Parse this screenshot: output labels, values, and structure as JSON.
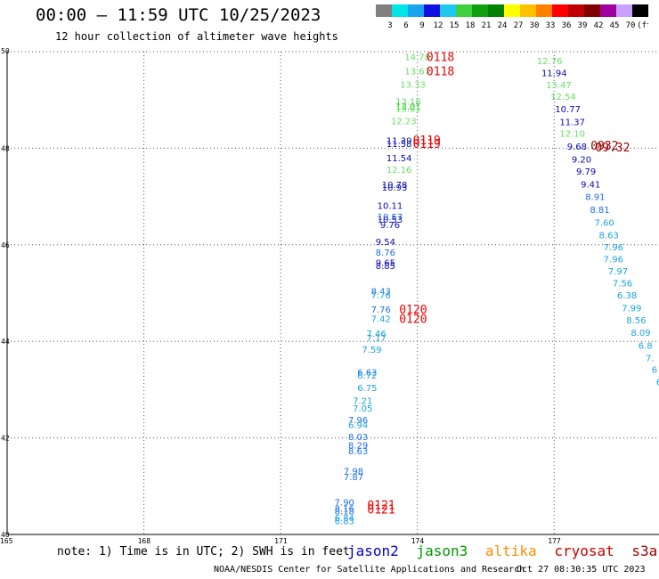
{
  "header": {
    "title": "00:00 – 11:59 UTC 10/25/2023",
    "subtitle": "12 hour collection of altimeter wave heights"
  },
  "colorbar": {
    "labels": [
      "3",
      "6",
      "9",
      "12",
      "15",
      "18",
      "21",
      "24",
      "27",
      "30",
      "33",
      "36",
      "39",
      "42",
      "45",
      "70",
      "(ft)"
    ],
    "colors": [
      "#808080",
      "#00e5e5",
      "#1aa3f0",
      "#1010e0",
      "#1ec8f0",
      "#40d040",
      "#10a010",
      "#008000",
      "#ffff00",
      "#ffc000",
      "#ff8000",
      "#ff0000",
      "#c00000",
      "#800000",
      "#a000a0",
      "#c8a0ff",
      "#000000"
    ]
  },
  "footer": {
    "note": "note: 1) Time is in UTC; 2) SWH is in feet",
    "credit": "NOAA/NESDIS Center for Satellite Applications and Research",
    "timestamp": "Oct 27 08:30:35 UTC 2023"
  },
  "satellites": [
    {
      "name": "jason2",
      "color": "#0000cc"
    },
    {
      "name": "jason3",
      "color": "#009900"
    },
    {
      "name": "altika",
      "color": "#ff8c00"
    },
    {
      "name": "cryosat",
      "color": "#cc0000"
    },
    {
      "name": "s3a",
      "color": "#990000"
    }
  ],
  "chart_data": {
    "type": "scatter",
    "title": "00:00 – 11:59 UTC 10/25/2023",
    "subtitle": "12 hour collection of altimeter wave heights",
    "xlim": [
      165,
      179.3
    ],
    "ylim": [
      40,
      50
    ],
    "x_ticks": [
      "165",
      "168",
      "171",
      "174",
      "177"
    ],
    "y_ticks": [
      "40",
      "42",
      "44",
      "46",
      "48",
      "50"
    ],
    "grid": true,
    "colors": {
      "lime": "#66e066",
      "green": "#22c022",
      "navy": "#0a0ab4",
      "blue": "#1e6ef0",
      "cyan": "#1aa3e0",
      "red": "#ee0000",
      "maroon": "#990000"
    },
    "points": [
      {
        "x": 174.0,
        "y": 49.9,
        "label": "14.78",
        "color": "lime"
      },
      {
        "x": 174.0,
        "y": 49.6,
        "label": "13.67",
        "color": "lime"
      },
      {
        "x": 173.9,
        "y": 49.33,
        "label": "13.33",
        "color": "lime"
      },
      {
        "x": 173.8,
        "y": 48.98,
        "label": "13.18",
        "color": "lime"
      },
      {
        "x": 173.8,
        "y": 48.87,
        "label": "13.01",
        "color": "green"
      },
      {
        "x": 173.8,
        "y": 48.83,
        "label": "15.01",
        "color": "lime"
      },
      {
        "x": 173.7,
        "y": 48.57,
        "label": "12.23",
        "color": "lime"
      },
      {
        "x": 173.6,
        "y": 48.16,
        "label": "11.39",
        "color": "navy"
      },
      {
        "x": 173.6,
        "y": 48.1,
        "label": "11.58",
        "color": "navy"
      },
      {
        "x": 173.6,
        "y": 47.8,
        "label": "11.54",
        "color": "navy"
      },
      {
        "x": 173.6,
        "y": 47.56,
        "label": "12.16",
        "color": "lime"
      },
      {
        "x": 173.5,
        "y": 47.25,
        "label": "10.78",
        "color": "navy"
      },
      {
        "x": 173.5,
        "y": 47.2,
        "label": "10.93",
        "color": "navy"
      },
      {
        "x": 173.4,
        "y": 46.82,
        "label": "10.11",
        "color": "navy"
      },
      {
        "x": 173.4,
        "y": 46.59,
        "label": "10.57",
        "color": "blue"
      },
      {
        "x": 173.4,
        "y": 46.53,
        "label": "10.53",
        "color": "navy"
      },
      {
        "x": 173.4,
        "y": 46.42,
        "label": "9.76",
        "color": "navy"
      },
      {
        "x": 173.3,
        "y": 46.07,
        "label": "9.54",
        "color": "navy"
      },
      {
        "x": 173.3,
        "y": 45.85,
        "label": "8.76",
        "color": "blue"
      },
      {
        "x": 173.3,
        "y": 45.64,
        "label": "9.65",
        "color": "navy"
      },
      {
        "x": 173.3,
        "y": 45.57,
        "label": "8.85",
        "color": "navy"
      },
      {
        "x": 173.2,
        "y": 45.05,
        "label": "8.43",
        "color": "blue"
      },
      {
        "x": 173.2,
        "y": 44.96,
        "label": "7.76",
        "color": "cyan"
      },
      {
        "x": 173.2,
        "y": 44.67,
        "label": "7.76",
        "color": "blue"
      },
      {
        "x": 173.2,
        "y": 44.47,
        "label": "7.42",
        "color": "cyan"
      },
      {
        "x": 173.1,
        "y": 44.17,
        "label": "7.46",
        "color": "cyan"
      },
      {
        "x": 173.1,
        "y": 44.08,
        "label": "7.17",
        "color": "cyan"
      },
      {
        "x": 173.0,
        "y": 43.84,
        "label": "7.59",
        "color": "cyan"
      },
      {
        "x": 172.9,
        "y": 43.37,
        "label": "6.63",
        "color": "blue"
      },
      {
        "x": 172.9,
        "y": 43.3,
        "label": "6.72",
        "color": "cyan"
      },
      {
        "x": 172.9,
        "y": 43.04,
        "label": "6.75",
        "color": "cyan"
      },
      {
        "x": 172.8,
        "y": 42.78,
        "label": "7.21",
        "color": "cyan"
      },
      {
        "x": 172.8,
        "y": 42.62,
        "label": "7.05",
        "color": "cyan"
      },
      {
        "x": 172.7,
        "y": 42.38,
        "label": "7.96",
        "color": "blue"
      },
      {
        "x": 172.7,
        "y": 42.28,
        "label": "6.94",
        "color": "cyan"
      },
      {
        "x": 172.7,
        "y": 42.03,
        "label": "8.03",
        "color": "blue"
      },
      {
        "x": 172.7,
        "y": 41.85,
        "label": "8.29",
        "color": "blue"
      },
      {
        "x": 172.7,
        "y": 41.73,
        "label": "8.63",
        "color": "blue"
      },
      {
        "x": 172.6,
        "y": 41.32,
        "label": "7.98",
        "color": "blue"
      },
      {
        "x": 172.6,
        "y": 41.2,
        "label": "7.87",
        "color": "blue"
      },
      {
        "x": 172.4,
        "y": 40.67,
        "label": "7.90",
        "color": "blue"
      },
      {
        "x": 172.4,
        "y": 40.54,
        "label": "8.16",
        "color": "blue"
      },
      {
        "x": 172.4,
        "y": 40.49,
        "label": "8.18",
        "color": "blue"
      },
      {
        "x": 172.4,
        "y": 40.35,
        "label": "6.84",
        "color": "cyan"
      },
      {
        "x": 172.4,
        "y": 40.29,
        "label": "6.83",
        "color": "cyan"
      },
      {
        "x": 176.9,
        "y": 49.82,
        "label": "12.76",
        "color": "lime"
      },
      {
        "x": 177.0,
        "y": 49.57,
        "label": "11.94",
        "color": "navy"
      },
      {
        "x": 177.1,
        "y": 49.32,
        "label": "13.47",
        "color": "lime"
      },
      {
        "x": 177.2,
        "y": 49.08,
        "label": "12.54",
        "color": "lime"
      },
      {
        "x": 177.3,
        "y": 48.82,
        "label": "10.77",
        "color": "navy"
      },
      {
        "x": 177.4,
        "y": 48.55,
        "label": "11.37",
        "color": "navy"
      },
      {
        "x": 177.4,
        "y": 48.31,
        "label": "12.10",
        "color": "lime"
      },
      {
        "x": 177.5,
        "y": 48.04,
        "label": "9.68",
        "color": "navy"
      },
      {
        "x": 177.6,
        "y": 47.78,
        "label": "9.20",
        "color": "navy"
      },
      {
        "x": 177.7,
        "y": 47.53,
        "label": "9.79",
        "color": "navy"
      },
      {
        "x": 177.8,
        "y": 47.26,
        "label": "9.41",
        "color": "navy"
      },
      {
        "x": 177.9,
        "y": 47.0,
        "label": "8.91",
        "color": "blue"
      },
      {
        "x": 178.0,
        "y": 46.73,
        "label": "8.81",
        "color": "blue"
      },
      {
        "x": 178.1,
        "y": 46.47,
        "label": "7.60",
        "color": "cyan"
      },
      {
        "x": 178.2,
        "y": 46.21,
        "label": "8.63",
        "color": "cyan"
      },
      {
        "x": 178.3,
        "y": 45.96,
        "label": "7.96",
        "color": "cyan"
      },
      {
        "x": 178.3,
        "y": 45.71,
        "label": "7.96",
        "color": "cyan"
      },
      {
        "x": 178.4,
        "y": 45.46,
        "label": "7.97",
        "color": "cyan"
      },
      {
        "x": 178.5,
        "y": 45.21,
        "label": "7.56",
        "color": "cyan"
      },
      {
        "x": 178.6,
        "y": 44.96,
        "label": "6.38",
        "color": "cyan"
      },
      {
        "x": 178.7,
        "y": 44.7,
        "label": "7.99",
        "color": "cyan"
      },
      {
        "x": 178.8,
        "y": 44.45,
        "label": "8.56",
        "color": "cyan"
      },
      {
        "x": 178.9,
        "y": 44.19,
        "label": "8.09",
        "color": "cyan"
      },
      {
        "x": 179.0,
        "y": 43.92,
        "label": "6.8",
        "color": "cyan"
      },
      {
        "x": 179.1,
        "y": 43.66,
        "label": "7.",
        "color": "cyan"
      },
      {
        "x": 179.2,
        "y": 43.42,
        "label": "6",
        "color": "cyan"
      },
      {
        "x": 179.3,
        "y": 43.16,
        "label": "6",
        "color": "cyan"
      }
    ],
    "annotations": [
      {
        "x": 174.2,
        "y": 49.9,
        "label": "0118",
        "color": "red"
      },
      {
        "x": 174.2,
        "y": 49.6,
        "label": "0118",
        "color": "red"
      },
      {
        "x": 173.9,
        "y": 48.17,
        "label": "0119",
        "color": "red"
      },
      {
        "x": 173.9,
        "y": 48.1,
        "label": "0119",
        "color": "red"
      },
      {
        "x": 177.8,
        "y": 48.06,
        "label": "0932",
        "color": "maroon"
      },
      {
        "x": 177.9,
        "y": 48.03,
        "label": "09.32",
        "color": "maroon"
      },
      {
        "x": 173.6,
        "y": 44.67,
        "label": "0120",
        "color": "red"
      },
      {
        "x": 173.6,
        "y": 44.47,
        "label": "0120",
        "color": "red"
      },
      {
        "x": 172.9,
        "y": 40.62,
        "label": "0121",
        "color": "red"
      },
      {
        "x": 172.9,
        "y": 40.53,
        "label": "0121",
        "color": "red"
      }
    ]
  }
}
